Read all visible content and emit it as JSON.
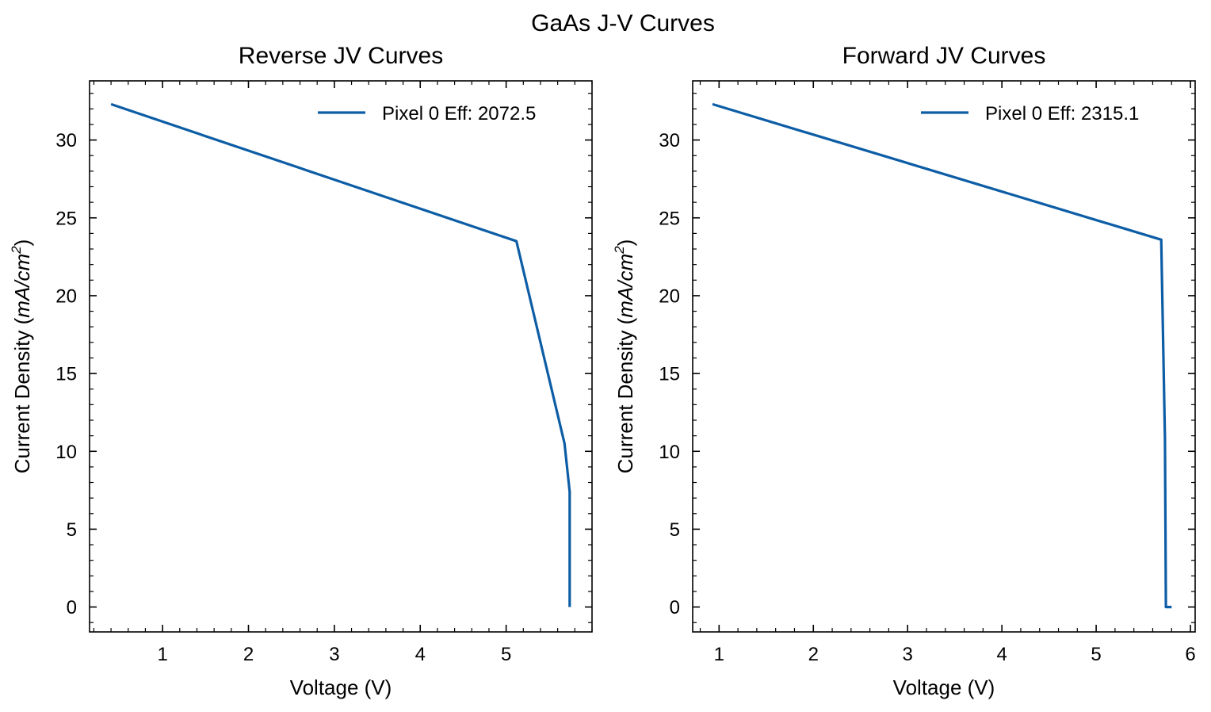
{
  "figure": {
    "suptitle": "GaAs J-V Curves"
  },
  "colors": {
    "series": "#0C5DA5",
    "axes": "#000000",
    "background": "#ffffff"
  },
  "chart_data": [
    {
      "type": "line",
      "title": "Reverse JV Curves",
      "xlabel": "Voltage (V)",
      "ylabel_prefix": "Current Density (",
      "ylabel_italic": "mA/cm",
      "ylabel_sup": "2",
      "ylabel_suffix": ")",
      "xlim": [
        0.15,
        6.0
      ],
      "ylim": [
        -1.6,
        33.8
      ],
      "xticks": [
        1,
        2,
        3,
        4,
        5
      ],
      "yticks": [
        0,
        5,
        10,
        15,
        20,
        25,
        30
      ],
      "legend_position": "top-right",
      "grid": false,
      "series": [
        {
          "name": "Pixel 0 Eff: 2072.5",
          "x": [
            0.4,
            5.12,
            5.68,
            5.74,
            5.74
          ],
          "y": [
            32.3,
            23.5,
            10.5,
            7.4,
            0.0
          ]
        }
      ]
    },
    {
      "type": "line",
      "title": "Forward JV Curves",
      "xlabel": "Voltage (V)",
      "ylabel_prefix": "Current Density (",
      "ylabel_italic": "mA/cm",
      "ylabel_sup": "2",
      "ylabel_suffix": ")",
      "xlim": [
        0.72,
        6.05
      ],
      "ylim": [
        -1.6,
        33.8
      ],
      "xticks": [
        1,
        2,
        3,
        4,
        5,
        6
      ],
      "yticks": [
        0,
        5,
        10,
        15,
        20,
        25,
        30
      ],
      "legend_position": "top-right",
      "grid": false,
      "series": [
        {
          "name": "Pixel 0 Eff: 2315.1",
          "x": [
            0.93,
            5.69,
            5.73,
            5.74,
            5.75,
            5.8
          ],
          "y": [
            32.3,
            23.6,
            10.8,
            0.0,
            0.0,
            0.0
          ]
        }
      ]
    }
  ]
}
